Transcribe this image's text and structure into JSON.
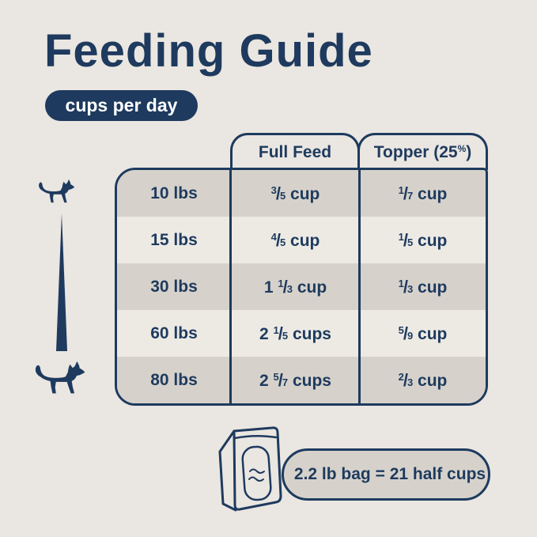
{
  "colors": {
    "navy": "#1e3a5e",
    "background": "#eae6e1",
    "row_gray": "#d6d2cb",
    "row_light": "#edeae4",
    "badge_text": "#ffffff"
  },
  "header": {
    "title": "Feeding Guide",
    "badge": "cups per day"
  },
  "table": {
    "column_headers": [
      {
        "label": "Full Feed"
      },
      {
        "label": "Topper (25%)",
        "prefix": "Topper (25",
        "sup": "%",
        "suffix": ")"
      }
    ],
    "rows": [
      {
        "weight": "10 lbs",
        "full_feed": {
          "whole": "",
          "num": "3",
          "den": "5",
          "unit": "cup"
        },
        "topper": {
          "whole": "",
          "num": "1",
          "den": "7",
          "unit": "cup"
        }
      },
      {
        "weight": "15 lbs",
        "full_feed": {
          "whole": "",
          "num": "4",
          "den": "5",
          "unit": "cup"
        },
        "topper": {
          "whole": "",
          "num": "1",
          "den": "5",
          "unit": "cup"
        }
      },
      {
        "weight": "30 lbs",
        "full_feed": {
          "whole": "1",
          "num": "1",
          "den": "3",
          "unit": "cup"
        },
        "topper": {
          "whole": "",
          "num": "1",
          "den": "3",
          "unit": "cup"
        }
      },
      {
        "weight": "60 lbs",
        "full_feed": {
          "whole": "2",
          "num": "1",
          "den": "5",
          "unit": "cups"
        },
        "topper": {
          "whole": "",
          "num": "5",
          "den": "9",
          "unit": "cup"
        }
      },
      {
        "weight": "80 lbs",
        "full_feed": {
          "whole": "2",
          "num": "5",
          "den": "7",
          "unit": "cups"
        },
        "topper": {
          "whole": "",
          "num": "2",
          "den": "3",
          "unit": "cup"
        }
      }
    ]
  },
  "footer": {
    "note": "2.2 lb bag = 21 half cups"
  },
  "icons": {
    "small_dog": "small-dog-icon",
    "large_dog": "large-dog-icon",
    "size_wedge": "size-scale-wedge",
    "bag": "food-bag-icon"
  },
  "chart_data": {
    "type": "table",
    "title": "Feeding Guide",
    "subtitle": "cups per day",
    "row_header": "weight",
    "categories": [
      "10 lbs",
      "15 lbs",
      "30 lbs",
      "60 lbs",
      "80 lbs"
    ],
    "series": [
      {
        "name": "Full Feed",
        "values_display": [
          "3/5 cup",
          "4/5 cup",
          "1 1/3 cup",
          "2 1/5 cups",
          "2 5/7 cups"
        ],
        "values_cups": [
          0.6,
          0.8,
          1.333,
          2.2,
          2.714
        ]
      },
      {
        "name": "Topper (25%)",
        "values_display": [
          "1/7 cup",
          "1/5 cup",
          "1/3 cup",
          "5/9 cup",
          "2/3 cup"
        ],
        "values_cups": [
          0.143,
          0.2,
          0.333,
          0.556,
          0.667
        ]
      }
    ],
    "note": "2.2 lb bag = 21 half cups"
  }
}
